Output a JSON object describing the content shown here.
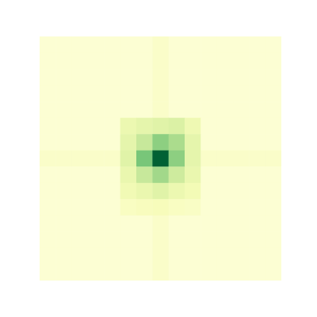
{
  "chart_data": {
    "type": "heatmap",
    "color": "YlGn",
    "color_range": [
      0,
      1
    ],
    "tick_labels": false,
    "cells": [
      [
        0.05,
        0.05,
        0.05,
        0.05,
        0.05,
        0.05,
        0.05,
        0.08,
        0.05,
        0.05,
        0.05,
        0.05,
        0.05,
        0.05,
        0.05
      ],
      [
        0.05,
        0.05,
        0.05,
        0.05,
        0.05,
        0.05,
        0.05,
        0.08,
        0.05,
        0.05,
        0.05,
        0.05,
        0.05,
        0.05,
        0.05
      ],
      [
        0.05,
        0.05,
        0.05,
        0.05,
        0.05,
        0.05,
        0.05,
        0.08,
        0.05,
        0.05,
        0.05,
        0.05,
        0.05,
        0.05,
        0.05
      ],
      [
        0.05,
        0.05,
        0.05,
        0.05,
        0.05,
        0.05,
        0.05,
        0.08,
        0.05,
        0.05,
        0.05,
        0.05,
        0.05,
        0.05,
        0.05
      ],
      [
        0.05,
        0.05,
        0.05,
        0.05,
        0.05,
        0.05,
        0.05,
        0.08,
        0.05,
        0.05,
        0.05,
        0.05,
        0.05,
        0.05,
        0.05
      ],
      [
        0.05,
        0.05,
        0.05,
        0.05,
        0.05,
        0.17,
        0.2,
        0.22,
        0.24,
        0.16,
        0.05,
        0.05,
        0.05,
        0.05,
        0.05
      ],
      [
        0.05,
        0.05,
        0.05,
        0.05,
        0.05,
        0.2,
        0.3,
        0.45,
        0.38,
        0.2,
        0.05,
        0.05,
        0.05,
        0.05,
        0.05
      ],
      [
        0.08,
        0.08,
        0.08,
        0.08,
        0.08,
        0.22,
        0.5,
        0.9,
        0.45,
        0.2,
        0.08,
        0.08,
        0.08,
        0.08,
        0.08
      ],
      [
        0.05,
        0.05,
        0.05,
        0.05,
        0.05,
        0.18,
        0.3,
        0.4,
        0.28,
        0.18,
        0.05,
        0.05,
        0.05,
        0.05,
        0.05
      ],
      [
        0.05,
        0.05,
        0.05,
        0.05,
        0.05,
        0.15,
        0.18,
        0.22,
        0.17,
        0.14,
        0.05,
        0.05,
        0.05,
        0.05,
        0.05
      ],
      [
        0.05,
        0.05,
        0.05,
        0.05,
        0.05,
        0.1,
        0.11,
        0.12,
        0.1,
        0.09,
        0.05,
        0.05,
        0.05,
        0.05,
        0.05
      ],
      [
        0.05,
        0.05,
        0.05,
        0.05,
        0.05,
        0.05,
        0.05,
        0.08,
        0.05,
        0.05,
        0.05,
        0.05,
        0.05,
        0.05,
        0.05
      ],
      [
        0.05,
        0.05,
        0.05,
        0.05,
        0.05,
        0.05,
        0.05,
        0.08,
        0.05,
        0.05,
        0.05,
        0.05,
        0.05,
        0.05,
        0.05
      ],
      [
        0.05,
        0.05,
        0.05,
        0.05,
        0.05,
        0.05,
        0.05,
        0.08,
        0.05,
        0.05,
        0.05,
        0.05,
        0.05,
        0.05,
        0.05
      ],
      [
        0.05,
        0.05,
        0.05,
        0.05,
        0.05,
        0.05,
        0.05,
        0.08,
        0.05,
        0.05,
        0.05,
        0.05,
        0.05,
        0.05,
        0.05
      ]
    ]
  }
}
